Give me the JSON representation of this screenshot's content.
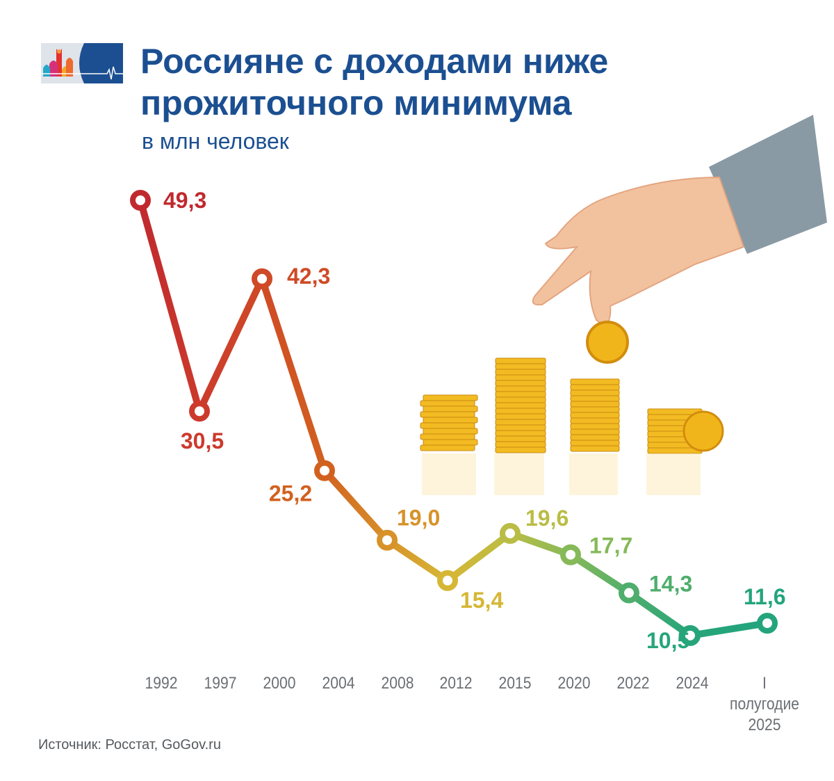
{
  "header": {
    "title_line1": "Россияне с доходами ниже",
    "title_line2": "прожиточного минимума",
    "subtitle": "в млн человек"
  },
  "chart_data": {
    "type": "line",
    "title": "Россияне с доходами ниже прожиточного минимума",
    "subtitle": "в млн человек",
    "xlabel": "",
    "ylabel": "млн человек",
    "categories": [
      "1992",
      "1997",
      "2000",
      "2004",
      "2008",
      "2012",
      "2015",
      "2020",
      "2022",
      "2024",
      "I полугодие 2025"
    ],
    "category_lines": [
      [
        "1992"
      ],
      [
        "1997"
      ],
      [
        "2000"
      ],
      [
        "2004"
      ],
      [
        "2008"
      ],
      [
        "2012"
      ],
      [
        "2015"
      ],
      [
        "2020"
      ],
      [
        "2022"
      ],
      [
        "2024"
      ],
      [
        "I полугодие",
        "2025"
      ]
    ],
    "values": [
      49.3,
      30.5,
      42.3,
      25.2,
      19.0,
      15.4,
      19.6,
      17.7,
      14.3,
      10.5,
      11.6
    ],
    "labels": [
      "49,3",
      "30,5",
      "42,3",
      "25,2",
      "19,0",
      "15,4",
      "19,6",
      "17,7",
      "14,3",
      "10,5",
      "11,6"
    ],
    "colors": [
      "#c0292e",
      "#cc3a2c",
      "#cf4a26",
      "#d2611f",
      "#d7922a",
      "#d6b735",
      "#b9bd45",
      "#86b959",
      "#4fae6c",
      "#26a57a",
      "#23a47c"
    ],
    "grid": false,
    "legend": "none"
  },
  "source": "Источник: Росстат, GoGov.ru"
}
